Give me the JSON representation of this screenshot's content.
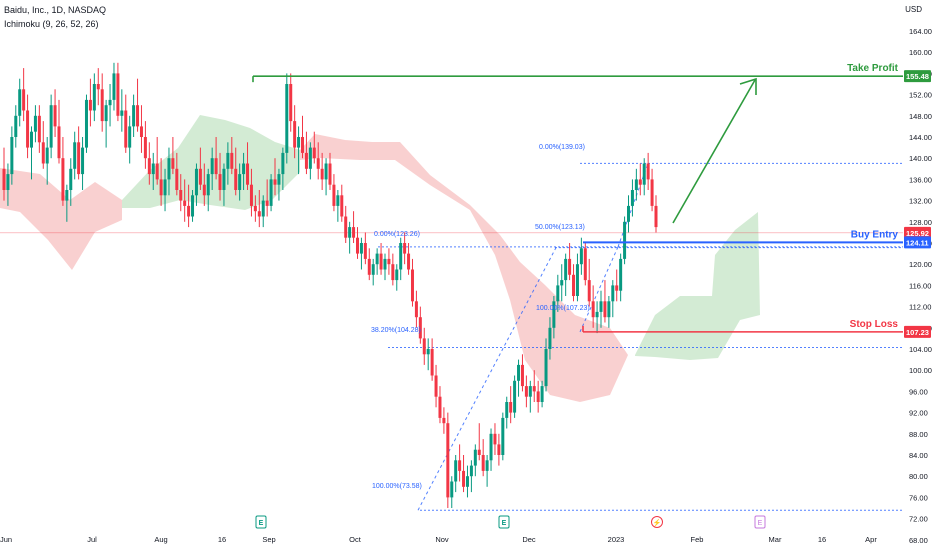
{
  "header": {
    "symbol_title": "Baidu, Inc., 1D, NASDAQ",
    "indicator": "Ichimoku (9, 26, 52, 26)",
    "currency": "USD"
  },
  "colors": {
    "up": "#089981",
    "down": "#f23645",
    "cloud_bull": "#c8e6c9",
    "cloud_bear": "#f7c4c4",
    "take_profit": "#2e9b3e",
    "buy_entry": "#2962ff",
    "stop_loss": "#f23645",
    "fib": "#2962ff",
    "current_price": "#f23645"
  },
  "chart_data": {
    "type": "candlestick",
    "y_axis": {
      "unit": "USD",
      "range": [
        66,
        168
      ],
      "tick_labels": [
        "68.00",
        "72.00",
        "76.00",
        "80.00",
        "84.00",
        "88.00",
        "92.00",
        "96.00",
        "100.00",
        "104.00",
        "108.00",
        "112.00",
        "116.00",
        "120.00",
        "124.00",
        "128.00",
        "132.00",
        "136.00",
        "140.00",
        "144.00",
        "148.00",
        "152.00",
        "156.00",
        "160.00",
        "164.00"
      ]
    },
    "x_axis": {
      "tick_labels": [
        "Jun",
        "Jul",
        "Aug",
        "16",
        "Sep",
        "Oct",
        "Nov",
        "Dec",
        "2023",
        "Feb",
        "Mar",
        "16",
        "Apr"
      ]
    },
    "levels": [
      {
        "name": "Take Profit",
        "value": 155.48,
        "label": "155.48"
      },
      {
        "name": "Buy Entry",
        "value": 124.11,
        "label": "124.11"
      },
      {
        "name": "Stop Loss",
        "value": 107.23,
        "label": "107.23"
      }
    ],
    "current_price": {
      "value": 125.92,
      "label": "125.92"
    },
    "fib_labels": [
      {
        "text": "0.00%(139.03)",
        "value": 139.03
      },
      {
        "text": "50.00%(123.13)",
        "value": 123.13
      },
      {
        "text": "0.00%(123.26)",
        "value": 123.26
      },
      {
        "text": "100.00%(107.23)",
        "value": 107.23
      },
      {
        "text": "38.20%(104.28)",
        "value": 104.28
      },
      {
        "text": "100.00%(73.58)",
        "value": 73.58
      }
    ],
    "earnings_markers": [
      "E",
      "E",
      "E"
    ],
    "dividend_marker": "E",
    "split_marker": "⚡",
    "candles": [
      [
        138,
        142,
        132,
        134
      ],
      [
        134,
        139,
        131,
        137
      ],
      [
        137,
        146,
        135,
        144
      ],
      [
        144,
        150,
        142,
        148
      ],
      [
        148,
        155,
        146,
        153
      ],
      [
        153,
        157,
        147,
        149
      ],
      [
        149,
        152,
        140,
        142
      ],
      [
        142,
        146,
        136,
        145
      ],
      [
        145,
        150,
        143,
        148
      ],
      [
        148,
        150,
        141,
        143
      ],
      [
        143,
        147,
        138,
        139
      ],
      [
        139,
        144,
        135,
        142
      ],
      [
        142,
        152,
        140,
        150
      ],
      [
        150,
        153,
        144,
        146
      ],
      [
        146,
        151,
        139,
        140
      ],
      [
        140,
        144,
        131,
        132
      ],
      [
        132,
        135,
        128,
        134
      ],
      [
        134,
        140,
        131,
        138
      ],
      [
        138,
        145,
        136,
        143
      ],
      [
        143,
        146,
        136,
        137
      ],
      [
        137,
        144,
        134,
        142
      ],
      [
        142,
        152,
        141,
        151
      ],
      [
        151,
        155,
        146,
        149
      ],
      [
        149,
        156,
        147,
        154
      ],
      [
        154,
        157,
        150,
        153
      ],
      [
        153,
        156,
        145,
        147
      ],
      [
        147,
        151,
        142,
        150
      ],
      [
        150,
        154,
        146,
        151
      ],
      [
        151,
        158,
        149,
        156
      ],
      [
        156,
        158,
        147,
        148
      ],
      [
        148,
        153,
        145,
        149
      ],
      [
        149,
        152,
        141,
        142
      ],
      [
        142,
        148,
        139,
        146
      ],
      [
        146,
        152,
        144,
        150
      ],
      [
        150,
        155,
        145,
        146
      ],
      [
        146,
        150,
        141,
        144
      ],
      [
        144,
        147,
        138,
        140
      ],
      [
        140,
        143,
        135,
        137
      ],
      [
        137,
        141,
        134,
        139
      ],
      [
        139,
        144,
        135,
        136
      ],
      [
        136,
        140,
        131,
        133
      ],
      [
        133,
        138,
        130,
        136
      ],
      [
        136,
        142,
        133,
        140
      ],
      [
        140,
        144,
        137,
        138
      ],
      [
        138,
        141,
        133,
        134
      ],
      [
        134,
        137,
        130,
        132
      ],
      [
        132,
        136,
        128,
        131
      ],
      [
        131,
        135,
        127,
        129
      ],
      [
        129,
        134,
        128,
        133
      ],
      [
        133,
        139,
        131,
        138
      ],
      [
        138,
        142,
        134,
        135
      ],
      [
        135,
        139,
        131,
        133
      ],
      [
        133,
        138,
        130,
        137
      ],
      [
        137,
        142,
        134,
        140
      ],
      [
        140,
        144,
        136,
        137
      ],
      [
        137,
        141,
        132,
        134
      ],
      [
        134,
        139,
        131,
        138
      ],
      [
        138,
        143,
        135,
        141
      ],
      [
        141,
        144,
        137,
        138
      ],
      [
        138,
        142,
        133,
        134
      ],
      [
        134,
        139,
        132,
        137
      ],
      [
        137,
        141,
        134,
        139
      ],
      [
        139,
        143,
        134,
        135
      ],
      [
        135,
        138,
        129,
        131
      ],
      [
        131,
        133,
        128,
        130
      ],
      [
        130,
        134,
        127,
        129
      ],
      [
        129,
        133,
        127,
        132
      ],
      [
        132,
        136,
        129,
        131
      ],
      [
        131,
        137,
        130,
        136
      ],
      [
        136,
        140,
        133,
        135
      ],
      [
        135,
        138,
        132,
        137
      ],
      [
        137,
        142,
        134,
        141
      ],
      [
        141,
        156,
        139,
        154
      ],
      [
        154,
        156,
        145,
        147
      ],
      [
        147,
        150,
        140,
        142
      ],
      [
        142,
        146,
        137,
        144
      ],
      [
        144,
        148,
        140,
        141
      ],
      [
        141,
        145,
        137,
        138
      ],
      [
        138,
        143,
        136,
        142
      ],
      [
        142,
        145,
        139,
        140
      ],
      [
        140,
        143,
        136,
        138
      ],
      [
        138,
        141,
        134,
        136
      ],
      [
        136,
        140,
        133,
        139
      ],
      [
        139,
        141,
        134,
        135
      ],
      [
        135,
        137,
        130,
        131
      ],
      [
        131,
        134,
        128,
        133
      ],
      [
        133,
        135,
        128,
        129
      ],
      [
        129,
        131,
        124,
        125
      ],
      [
        125,
        128,
        122,
        127
      ],
      [
        127,
        130,
        124,
        125
      ],
      [
        125,
        127,
        121,
        122
      ],
      [
        122,
        125,
        119,
        124
      ],
      [
        124,
        126,
        120,
        121
      ],
      [
        121,
        123,
        117,
        118
      ],
      [
        118,
        121,
        116,
        120
      ],
      [
        120,
        123,
        118,
        122
      ],
      [
        122,
        124,
        118,
        119
      ],
      [
        119,
        122,
        117,
        121
      ],
      [
        121,
        123,
        118,
        120
      ],
      [
        120,
        122,
        116,
        117
      ],
      [
        117,
        120,
        115,
        119
      ],
      [
        119,
        125,
        117,
        124
      ],
      [
        124,
        126,
        120,
        122
      ],
      [
        122,
        124,
        118,
        119
      ],
      [
        119,
        121,
        112,
        113
      ],
      [
        113,
        115,
        108,
        110
      ],
      [
        110,
        112,
        105,
        106
      ],
      [
        106,
        108,
        101,
        103
      ],
      [
        103,
        106,
        100,
        104
      ],
      [
        104,
        106,
        98,
        99
      ],
      [
        99,
        101,
        93,
        95
      ],
      [
        95,
        97,
        90,
        91
      ],
      [
        91,
        93,
        88,
        90
      ],
      [
        90,
        92,
        74,
        76
      ],
      [
        76,
        80,
        74,
        79
      ],
      [
        79,
        84,
        77,
        83
      ],
      [
        83,
        86,
        79,
        81
      ],
      [
        81,
        84,
        77,
        78
      ],
      [
        78,
        82,
        76,
        80
      ],
      [
        80,
        83,
        77,
        82
      ],
      [
        82,
        86,
        80,
        85
      ],
      [
        85,
        90,
        83,
        84
      ],
      [
        84,
        87,
        80,
        81
      ],
      [
        81,
        84,
        78,
        83
      ],
      [
        83,
        89,
        81,
        88
      ],
      [
        88,
        90,
        84,
        86
      ],
      [
        86,
        88,
        82,
        84
      ],
      [
        84,
        92,
        83,
        91
      ],
      [
        91,
        95,
        89,
        94
      ],
      [
        94,
        97,
        90,
        92
      ],
      [
        92,
        99,
        91,
        98
      ],
      [
        98,
        102,
        95,
        101
      ],
      [
        101,
        103,
        96,
        97
      ],
      [
        97,
        99,
        93,
        95
      ],
      [
        95,
        98,
        92,
        97
      ],
      [
        97,
        100,
        94,
        96
      ],
      [
        96,
        98,
        92,
        94
      ],
      [
        94,
        98,
        93,
        97
      ],
      [
        97,
        106,
        96,
        104
      ],
      [
        104,
        110,
        102,
        108
      ],
      [
        108,
        114,
        106,
        113
      ],
      [
        113,
        118,
        111,
        116
      ],
      [
        116,
        120,
        113,
        117
      ],
      [
        117,
        122,
        114,
        121
      ],
      [
        121,
        124,
        117,
        118
      ],
      [
        118,
        120,
        113,
        114
      ],
      [
        114,
        122,
        113,
        120
      ],
      [
        120,
        125,
        118,
        123
      ],
      [
        123,
        124,
        116,
        117
      ],
      [
        117,
        121,
        112,
        113
      ],
      [
        113,
        116,
        108,
        110
      ],
      [
        110,
        113,
        107,
        111
      ],
      [
        111,
        115,
        108,
        113
      ],
      [
        113,
        117,
        109,
        110
      ],
      [
        110,
        114,
        108,
        113
      ],
      [
        113,
        117,
        110,
        116
      ],
      [
        116,
        119,
        113,
        115
      ],
      [
        115,
        122,
        113,
        121
      ],
      [
        121,
        129,
        120,
        128
      ],
      [
        128,
        133,
        126,
        131
      ],
      [
        131,
        136,
        129,
        134
      ],
      [
        134,
        138,
        132,
        136
      ],
      [
        136,
        139,
        133,
        135
      ],
      [
        135,
        140,
        133,
        139
      ],
      [
        139,
        141,
        134,
        136
      ],
      [
        136,
        138,
        130,
        131
      ],
      [
        131,
        133,
        126,
        127
      ]
    ]
  }
}
